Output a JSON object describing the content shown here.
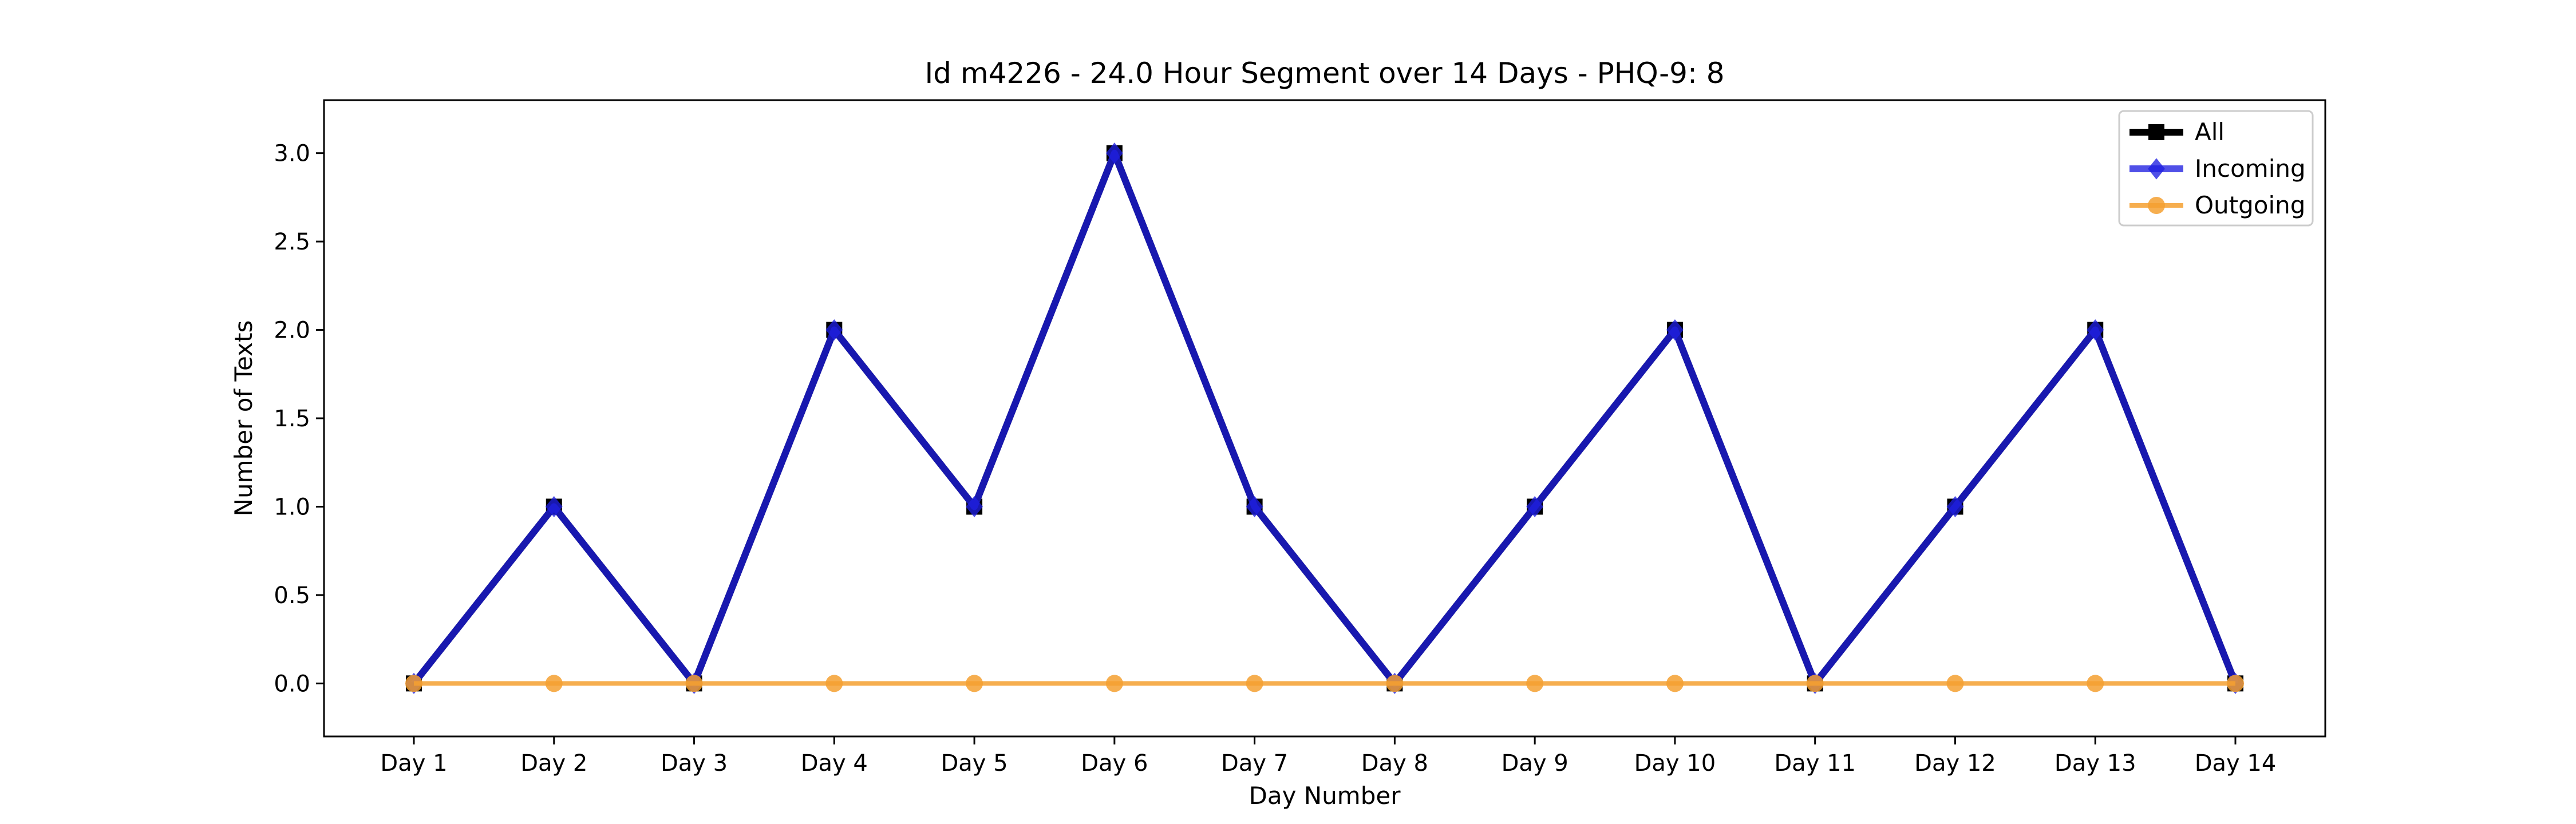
{
  "chart_data": {
    "type": "line",
    "title": "Id m4226 - 24.0 Hour Segment over 14 Days - PHQ-9: 8",
    "xlabel": "Day Number",
    "ylabel": "Number of Texts",
    "categories": [
      "Day 1",
      "Day 2",
      "Day 3",
      "Day 4",
      "Day 5",
      "Day 6",
      "Day 7",
      "Day 8",
      "Day 9",
      "Day 10",
      "Day 11",
      "Day 12",
      "Day 13",
      "Day 14"
    ],
    "ylim": [
      -0.3,
      3.3
    ],
    "yticks": [
      "0.0",
      "0.5",
      "1.0",
      "1.5",
      "2.0",
      "2.5",
      "3.0"
    ],
    "legend_position": "top-right",
    "grid": false,
    "series": [
      {
        "name": "All",
        "color": "#000000",
        "marker": "square",
        "values": [
          0,
          1,
          0,
          2,
          1,
          3,
          1,
          0,
          1,
          2,
          0,
          1,
          2,
          0
        ]
      },
      {
        "name": "Incoming",
        "color": "#1f1fe0",
        "marker": "diamond",
        "values": [
          0,
          1,
          0,
          2,
          1,
          3,
          1,
          0,
          1,
          2,
          0,
          1,
          2,
          0
        ]
      },
      {
        "name": "Outgoing",
        "color": "#f5a030",
        "marker": "circle",
        "values": [
          0,
          0,
          0,
          0,
          0,
          0,
          0,
          0,
          0,
          0,
          0,
          0,
          0,
          0
        ]
      }
    ]
  }
}
